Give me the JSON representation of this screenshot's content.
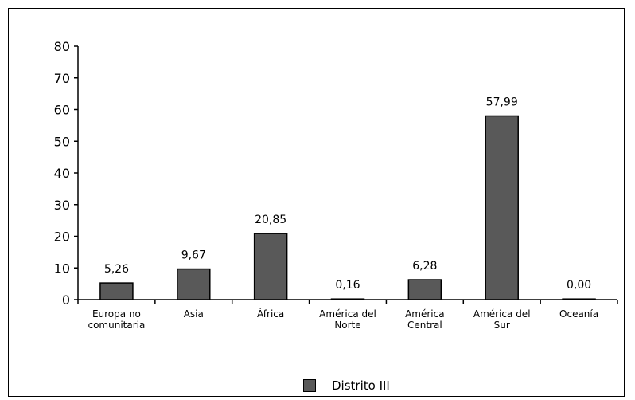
{
  "chart_data": {
    "type": "bar",
    "categories": [
      [
        "Europa no",
        "comunitaria"
      ],
      [
        "Asia"
      ],
      [
        "África"
      ],
      [
        "América del",
        "Norte"
      ],
      [
        "América",
        "Central"
      ],
      [
        "América del",
        "Sur"
      ],
      [
        "Oceanía"
      ]
    ],
    "series": [
      {
        "name": "Distrito III",
        "values": [
          5.26,
          9.67,
          20.85,
          0.16,
          6.28,
          57.99,
          0.0
        ],
        "data_labels": [
          "5,26",
          "9,67",
          "20,85",
          "0,16",
          "6,28",
          "57,99",
          "0,00"
        ]
      }
    ],
    "ylim": [
      0,
      80
    ],
    "yticks": [
      "0",
      "10",
      "20",
      "30",
      "40",
      "50",
      "60",
      "70",
      "80"
    ],
    "xlabel": "",
    "ylabel": "",
    "grid": false,
    "legend_position": "bottom",
    "bar_color": "#595959",
    "axis_color": "#000000"
  },
  "legend": {
    "label": "Distrito III"
  }
}
